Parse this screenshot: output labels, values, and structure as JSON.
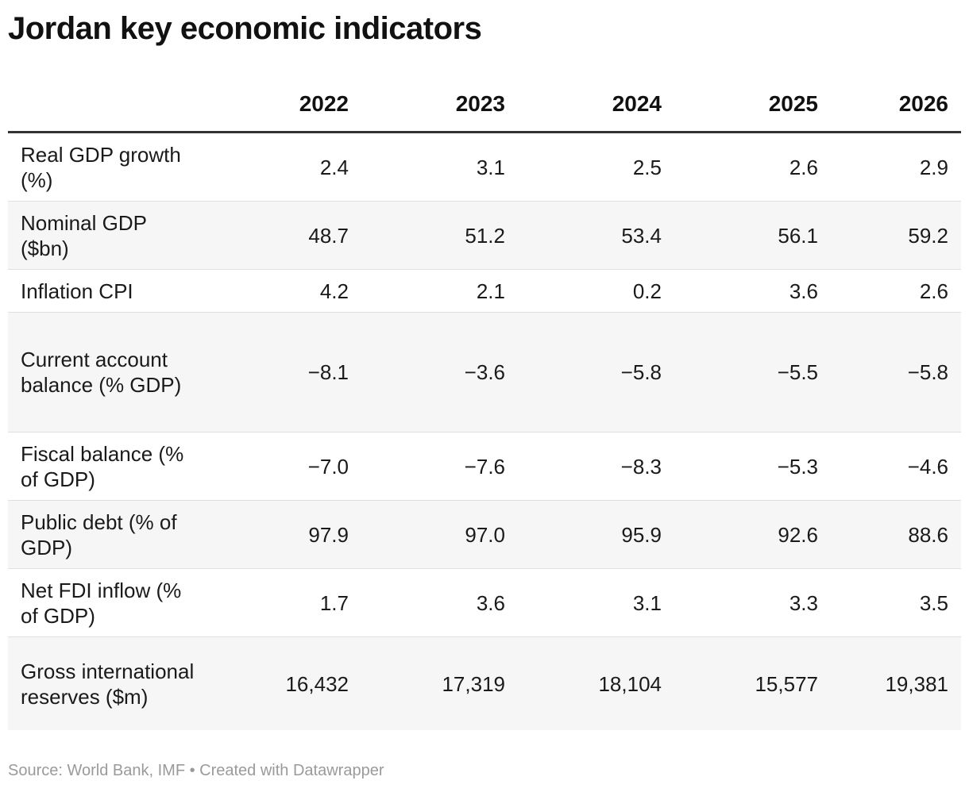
{
  "title": "Jordan key economic indicators",
  "source": "Source: World Bank, IMF • Created with Datawrapper",
  "chart_data": {
    "type": "table",
    "columns": [
      "",
      "2022",
      "2023",
      "2024",
      "2025",
      "2026"
    ],
    "rows": [
      {
        "label": "Real GDP growth (%)",
        "values": [
          "2.4",
          "3.1",
          "2.5",
          "2.6",
          "2.9"
        ]
      },
      {
        "label": "Nominal GDP ($bn)",
        "values": [
          "48.7",
          "51.2",
          "53.4",
          "56.1",
          "59.2"
        ]
      },
      {
        "label": "Inflation CPI",
        "values": [
          "4.2",
          "2.1",
          "0.2",
          "3.6",
          "2.6"
        ]
      },
      {
        "label": "Current account balance (% GDP)",
        "values": [
          "−8.1",
          "−3.6",
          "−5.8",
          "−5.5",
          "−5.8"
        ]
      },
      {
        "label": "Fiscal balance (% of GDP)",
        "values": [
          "−7.0",
          "−7.6",
          "−8.3",
          "−5.3",
          "−4.6"
        ]
      },
      {
        "label": "Public debt (% of GDP)",
        "values": [
          "97.9",
          "97.0",
          "95.9",
          "92.6",
          "88.6"
        ]
      },
      {
        "label": "Net FDI inflow (% of GDP)",
        "values": [
          "1.7",
          "3.6",
          "3.1",
          "3.3",
          "3.5"
        ]
      },
      {
        "label": "Gross international reserves ($m)",
        "values": [
          "16,432",
          "17,319",
          "18,104",
          "15,577",
          "19,381"
        ]
      }
    ]
  }
}
